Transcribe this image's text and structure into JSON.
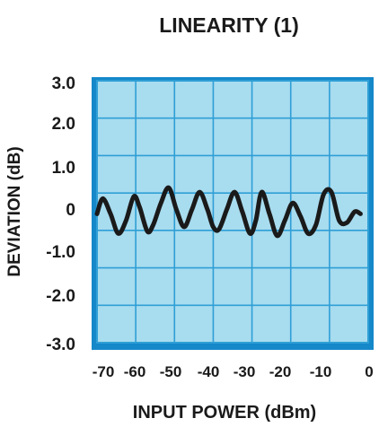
{
  "chart_data": {
    "type": "line",
    "title": "LINEARITY (1)",
    "xlabel": "INPUT POWER (dBm)",
    "ylabel": "DEVIATION (dB)",
    "xlim": [
      -70,
      0
    ],
    "ylim": [
      -3.0,
      3.0
    ],
    "x_ticks": [
      "-70",
      "-60",
      "-50",
      "-40",
      "-30",
      "-20",
      "-10",
      "0"
    ],
    "y_ticks": [
      "3.0",
      "2.0",
      "1.0",
      "0",
      "-1.0",
      "-2.0",
      "-3.0"
    ],
    "grid": true,
    "series": [
      {
        "x": [
          -70,
          -68.5,
          -66.5,
          -64.5,
          -62.5,
          -60.5,
          -59,
          -57,
          -55.5,
          -53.5,
          -51.5,
          -49.5,
          -47.5,
          -45.5,
          -43.5,
          -41.5,
          -40,
          -38.5,
          -36.5,
          -34.5,
          -32.5,
          -30.5,
          -29,
          -27.5,
          -25.5,
          -23.5,
          -21.5,
          -19.5,
          -17.5,
          -15.5,
          -13.5,
          -11.5,
          -9.5,
          -7.5,
          -5.5,
          -3.5,
          -2
        ],
        "y": [
          -0.05,
          0.3,
          -0.05,
          -0.5,
          -0.2,
          0.35,
          0.1,
          -0.45,
          -0.3,
          0.2,
          0.55,
          0.05,
          -0.35,
          0.05,
          0.45,
          0.05,
          -0.35,
          -0.4,
          0.05,
          0.45,
          0.0,
          -0.5,
          -0.2,
          0.45,
          -0.05,
          -0.55,
          -0.2,
          0.2,
          -0.1,
          -0.5,
          -0.3,
          0.4,
          0.45,
          -0.2,
          -0.25,
          0.0,
          -0.05
        ],
        "color": "#1a1a1a"
      }
    ],
    "colors": {
      "plot_background": "#a8dcef",
      "grid": "#2f9fd6",
      "frame": "#2f9fd6",
      "shadow": "#1588c9",
      "line": "#1a1a1a"
    }
  }
}
